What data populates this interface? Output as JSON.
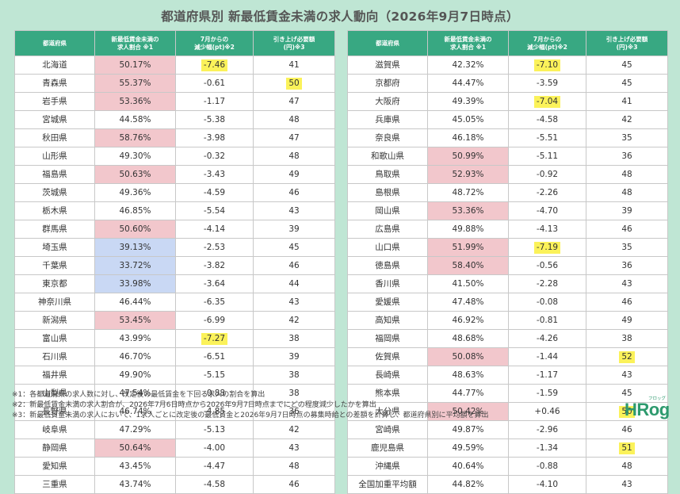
{
  "title": "都道府県別 新最低賃金未満の求人動向（2026年9月7日時点）",
  "headers": [
    "都道府県",
    "新最低賃金未満の\n求人割合 ※1",
    "7月からの\n減少幅(pt)※2",
    "引き上げ必要額\n(円)※3"
  ],
  "left_rows": [
    {
      "pref": "北海道",
      "ratio": "50.17%",
      "shade": "pink",
      "change": "-7.46",
      "change_hl": true,
      "amount": "41",
      "amount_hl": false
    },
    {
      "pref": "青森県",
      "ratio": "55.37%",
      "shade": "pink",
      "change": "-0.61",
      "change_hl": false,
      "amount": "50",
      "amount_hl": true
    },
    {
      "pref": "岩手県",
      "ratio": "53.36%",
      "shade": "pink",
      "change": "-1.17",
      "change_hl": false,
      "amount": "47",
      "amount_hl": false
    },
    {
      "pref": "宮城県",
      "ratio": "44.58%",
      "shade": "",
      "change": "-5.38",
      "change_hl": false,
      "amount": "48",
      "amount_hl": false
    },
    {
      "pref": "秋田県",
      "ratio": "58.76%",
      "shade": "pink",
      "change": "-3.98",
      "change_hl": false,
      "amount": "47",
      "amount_hl": false
    },
    {
      "pref": "山形県",
      "ratio": "49.30%",
      "shade": "",
      "change": "-0.32",
      "change_hl": false,
      "amount": "48",
      "amount_hl": false
    },
    {
      "pref": "福島県",
      "ratio": "50.63%",
      "shade": "pink",
      "change": "-3.43",
      "change_hl": false,
      "amount": "49",
      "amount_hl": false
    },
    {
      "pref": "茨城県",
      "ratio": "49.36%",
      "shade": "",
      "change": "-4.59",
      "change_hl": false,
      "amount": "46",
      "amount_hl": false
    },
    {
      "pref": "栃木県",
      "ratio": "46.85%",
      "shade": "",
      "change": "-5.54",
      "change_hl": false,
      "amount": "43",
      "amount_hl": false
    },
    {
      "pref": "群馬県",
      "ratio": "50.60%",
      "shade": "pink",
      "change": "-4.14",
      "change_hl": false,
      "amount": "39",
      "amount_hl": false
    },
    {
      "pref": "埼玉県",
      "ratio": "39.13%",
      "shade": "blue",
      "change": "-2.53",
      "change_hl": false,
      "amount": "45",
      "amount_hl": false
    },
    {
      "pref": "千葉県",
      "ratio": "33.72%",
      "shade": "blue",
      "change": "-3.82",
      "change_hl": false,
      "amount": "46",
      "amount_hl": false
    },
    {
      "pref": "東京都",
      "ratio": "33.98%",
      "shade": "blue",
      "change": "-3.64",
      "change_hl": false,
      "amount": "44",
      "amount_hl": false
    },
    {
      "pref": "神奈川県",
      "ratio": "46.44%",
      "shade": "",
      "change": "-6.35",
      "change_hl": false,
      "amount": "43",
      "amount_hl": false
    },
    {
      "pref": "新潟県",
      "ratio": "53.45%",
      "shade": "pink",
      "change": "-6.99",
      "change_hl": false,
      "amount": "42",
      "amount_hl": false
    },
    {
      "pref": "富山県",
      "ratio": "43.99%",
      "shade": "",
      "change": "-7.27",
      "change_hl": true,
      "amount": "38",
      "amount_hl": false
    },
    {
      "pref": "石川県",
      "ratio": "46.70%",
      "shade": "",
      "change": "-6.51",
      "change_hl": false,
      "amount": "39",
      "amount_hl": false
    },
    {
      "pref": "福井県",
      "ratio": "49.90%",
      "shade": "",
      "change": "-5.15",
      "change_hl": false,
      "amount": "38",
      "amount_hl": false
    },
    {
      "pref": "山梨県",
      "ratio": "47.54%",
      "shade": "",
      "change": "-0.88",
      "change_hl": false,
      "amount": "38",
      "amount_hl": false
    },
    {
      "pref": "長野県",
      "ratio": "46.74%",
      "shade": "",
      "change": "-4.85",
      "change_hl": false,
      "amount": "36",
      "amount_hl": false
    },
    {
      "pref": "岐阜県",
      "ratio": "47.29%",
      "shade": "",
      "change": "-5.13",
      "change_hl": false,
      "amount": "42",
      "amount_hl": false
    },
    {
      "pref": "静岡県",
      "ratio": "50.64%",
      "shade": "pink",
      "change": "-4.00",
      "change_hl": false,
      "amount": "43",
      "amount_hl": false
    },
    {
      "pref": "愛知県",
      "ratio": "43.45%",
      "shade": "",
      "change": "-4.47",
      "change_hl": false,
      "amount": "48",
      "amount_hl": false
    },
    {
      "pref": "三重県",
      "ratio": "43.74%",
      "shade": "",
      "change": "-4.58",
      "change_hl": false,
      "amount": "46",
      "amount_hl": false
    }
  ],
  "right_rows": [
    {
      "pref": "滋賀県",
      "ratio": "42.32%",
      "shade": "",
      "change": "-7.10",
      "change_hl": true,
      "amount": "45",
      "amount_hl": false
    },
    {
      "pref": "京都府",
      "ratio": "44.47%",
      "shade": "",
      "change": "-3.59",
      "change_hl": false,
      "amount": "45",
      "amount_hl": false
    },
    {
      "pref": "大阪府",
      "ratio": "49.39%",
      "shade": "",
      "change": "-7.04",
      "change_hl": true,
      "amount": "41",
      "amount_hl": false
    },
    {
      "pref": "兵庫県",
      "ratio": "45.05%",
      "shade": "",
      "change": "-4.58",
      "change_hl": false,
      "amount": "42",
      "amount_hl": false
    },
    {
      "pref": "奈良県",
      "ratio": "46.18%",
      "shade": "",
      "change": "-5.51",
      "change_hl": false,
      "amount": "35",
      "amount_hl": false
    },
    {
      "pref": "和歌山県",
      "ratio": "50.99%",
      "shade": "pink",
      "change": "-5.11",
      "change_hl": false,
      "amount": "36",
      "amount_hl": false
    },
    {
      "pref": "鳥取県",
      "ratio": "52.93%",
      "shade": "pink",
      "change": "-0.92",
      "change_hl": false,
      "amount": "48",
      "amount_hl": false
    },
    {
      "pref": "島根県",
      "ratio": "48.72%",
      "shade": "",
      "change": "-2.26",
      "change_hl": false,
      "amount": "48",
      "amount_hl": false
    },
    {
      "pref": "岡山県",
      "ratio": "53.36%",
      "shade": "pink",
      "change": "-4.70",
      "change_hl": false,
      "amount": "39",
      "amount_hl": false
    },
    {
      "pref": "広島県",
      "ratio": "49.88%",
      "shade": "",
      "change": "-4.13",
      "change_hl": false,
      "amount": "46",
      "amount_hl": false
    },
    {
      "pref": "山口県",
      "ratio": "51.99%",
      "shade": "pink",
      "change": "-7.19",
      "change_hl": true,
      "amount": "35",
      "amount_hl": false
    },
    {
      "pref": "徳島県",
      "ratio": "58.40%",
      "shade": "pink",
      "change": "-0.56",
      "change_hl": false,
      "amount": "36",
      "amount_hl": false
    },
    {
      "pref": "香川県",
      "ratio": "41.50%",
      "shade": "",
      "change": "-2.28",
      "change_hl": false,
      "amount": "43",
      "amount_hl": false
    },
    {
      "pref": "愛媛県",
      "ratio": "47.48%",
      "shade": "",
      "change": "-0.08",
      "change_hl": false,
      "amount": "46",
      "amount_hl": false
    },
    {
      "pref": "高知県",
      "ratio": "46.92%",
      "shade": "",
      "change": "-0.81",
      "change_hl": false,
      "amount": "49",
      "amount_hl": false
    },
    {
      "pref": "福岡県",
      "ratio": "48.68%",
      "shade": "",
      "change": "-4.26",
      "change_hl": false,
      "amount": "38",
      "amount_hl": false
    },
    {
      "pref": "佐賀県",
      "ratio": "50.08%",
      "shade": "pink",
      "change": "-1.44",
      "change_hl": false,
      "amount": "52",
      "amount_hl": true
    },
    {
      "pref": "長崎県",
      "ratio": "48.63%",
      "shade": "",
      "change": "-1.17",
      "change_hl": false,
      "amount": "43",
      "amount_hl": false
    },
    {
      "pref": "熊本県",
      "ratio": "44.77%",
      "shade": "",
      "change": "-1.59",
      "change_hl": false,
      "amount": "45",
      "amount_hl": false
    },
    {
      "pref": "大分県",
      "ratio": "50.42%",
      "shade": "pink",
      "change": "+0.46",
      "change_hl": false,
      "amount": "50",
      "amount_hl": true
    },
    {
      "pref": "宮崎県",
      "ratio": "49.87%",
      "shade": "",
      "change": "-2.96",
      "change_hl": false,
      "amount": "46",
      "amount_hl": false
    },
    {
      "pref": "鹿児島県",
      "ratio": "49.59%",
      "shade": "",
      "change": "-1.34",
      "change_hl": false,
      "amount": "51",
      "amount_hl": true
    },
    {
      "pref": "沖縄県",
      "ratio": "40.64%",
      "shade": "",
      "change": "-0.88",
      "change_hl": false,
      "amount": "48",
      "amount_hl": false
    },
    {
      "pref": "全国加重平均額",
      "ratio": "44.82%",
      "shade": "",
      "change": "-4.10",
      "change_hl": false,
      "amount": "43",
      "amount_hl": false
    }
  ],
  "notes": [
    "※1：各都道府県の求人数に対し、改定後の最低賃金を下回る求人の割合を算出",
    "※2：新最低賃金未満の求人割合が、2026年7月6日時点から2026年9月7日時点までにどの程度減少したかを算出",
    "※3：新最低賃金未満の求人において、1求人ごとに改定後の最低賃金と2026年9月7日時点の募集時給との差額を計算し、都道府県別に平均額を算出"
  ],
  "logo": {
    "main": "HRog",
    "kana": "フロッグ"
  },
  "colors": {
    "background": "#bfe6d4",
    "header": "#38a882",
    "pink": "#f2c7cc",
    "blue": "#c9d8f4",
    "highlight": "#fbf25a"
  }
}
